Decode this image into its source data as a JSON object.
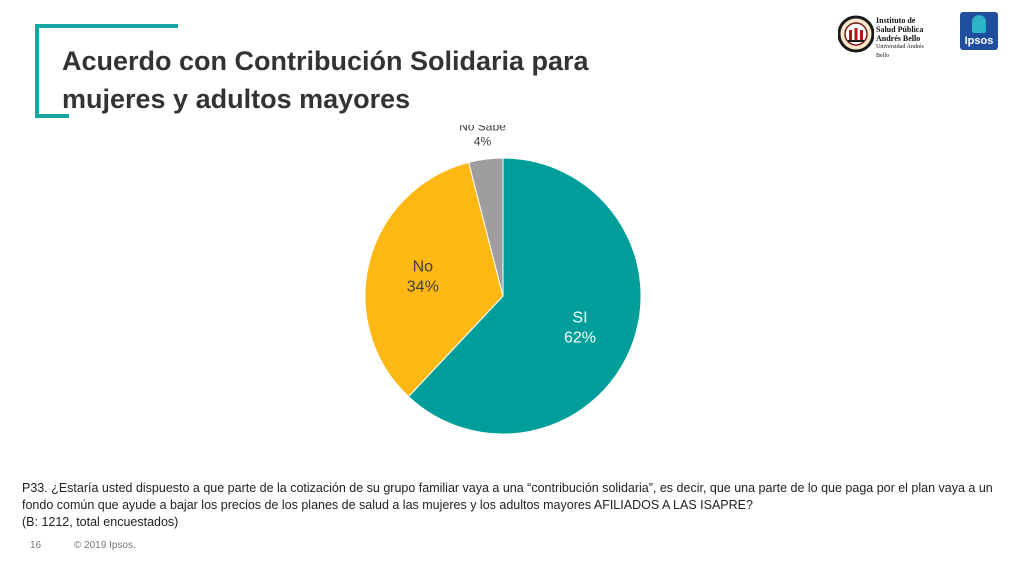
{
  "title": "Acuerdo con Contribución Solidaria para mujeres y adultos mayores",
  "logos": {
    "institute_lines": [
      "Instituto de",
      "Salud Pública",
      "Andrés Bello"
    ],
    "institute_sub": "Universidad Andrés Bello",
    "ipsos": "Ipsos"
  },
  "chart_data": {
    "type": "pie",
    "slices": [
      {
        "label": "SI",
        "value": 62,
        "display": "62%",
        "color": "#009e9a"
      },
      {
        "label": "No",
        "value": 34,
        "display": "34%",
        "color": "#fdb813"
      },
      {
        "label": "No Sabe",
        "value": 4,
        "display": "4%",
        "color": "#9e9e9e"
      }
    ]
  },
  "note": {
    "question": "P33. ¿Estaría usted dispuesto a que parte de la cotización de su grupo familiar vaya a una “contribución solidaria”, es decir, que una parte de lo que paga por el plan vaya a un fondo común que ayude a bajar los precios de los planes de salud a las mujeres y los adultos mayores AFILIADOS A LAS ISAPRE?",
    "base": "(B: 1212, total encuestados)"
  },
  "footer": {
    "page": "16",
    "copyright": "© 2019 Ipsos."
  }
}
